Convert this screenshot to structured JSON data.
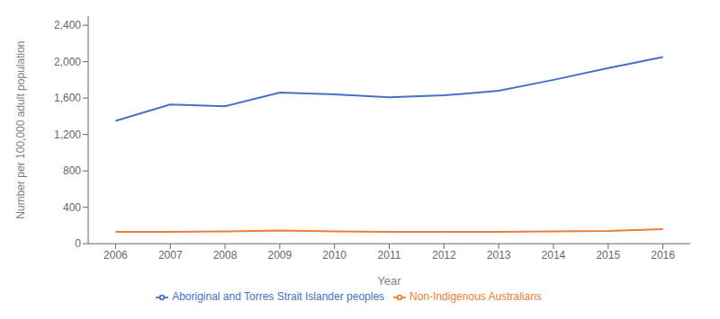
{
  "chart_data": {
    "type": "line",
    "x": [
      2006,
      2007,
      2008,
      2009,
      2010,
      2011,
      2012,
      2013,
      2014,
      2015,
      2016
    ],
    "series": [
      {
        "name": "Aboriginal and Torres Strait Islander peoples",
        "color": "#4472C4",
        "values": [
          1350,
          1530,
          1510,
          1660,
          1640,
          1610,
          1630,
          1680,
          1800,
          1930,
          2050
        ]
      },
      {
        "name": "Non-Indigenous Australians",
        "color": "#ED7D31",
        "values": [
          130,
          130,
          135,
          145,
          135,
          130,
          130,
          130,
          135,
          140,
          160
        ]
      }
    ],
    "xlabel": "Year",
    "ylabel": "Number per 100,000 adult population",
    "xlim": [
      2005.5,
      2016.5
    ],
    "xticks": [
      2006,
      2007,
      2008,
      2009,
      2010,
      2011,
      2012,
      2013,
      2014,
      2015,
      2016
    ],
    "ylim": [
      0,
      2500
    ],
    "yticks": [
      0,
      400,
      800,
      {
        "value": 1200,
        "label": "1,200"
      },
      {
        "value": 1600,
        "label": "1,600"
      },
      {
        "value": 2000,
        "label": "2,000"
      },
      {
        "value": 2400,
        "label": "2,400"
      }
    ],
    "grid": false,
    "legend": "bottom"
  }
}
